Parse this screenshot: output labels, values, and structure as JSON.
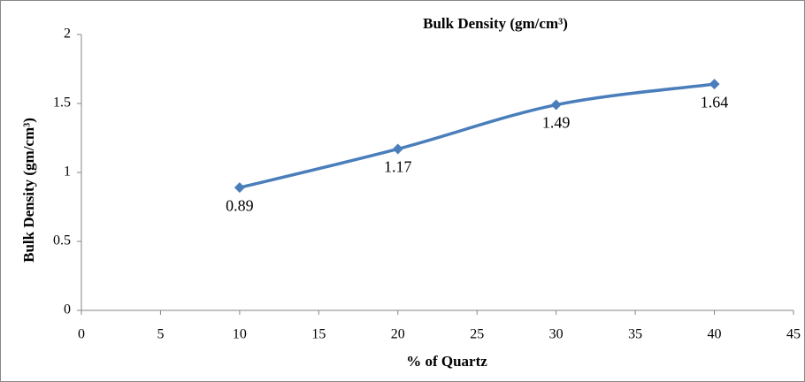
{
  "chart_data": {
    "type": "line",
    "title": "Bulk Density (gm/cm³)",
    "xlabel": "% of Quartz",
    "ylabel": "Bulk Density (gm/cm³)",
    "x": [
      10,
      20,
      30,
      40
    ],
    "values": [
      0.89,
      1.17,
      1.49,
      1.64
    ],
    "color": "#4a7ebb",
    "xlim": [
      0,
      45
    ],
    "xticks": [
      0,
      5,
      10,
      15,
      20,
      25,
      30,
      35,
      40,
      45
    ],
    "ylim": [
      0,
      2
    ],
    "yticks": [
      0,
      0.5,
      1,
      1.5,
      2
    ],
    "grid": false,
    "data_labels": true,
    "smooth": true
  }
}
